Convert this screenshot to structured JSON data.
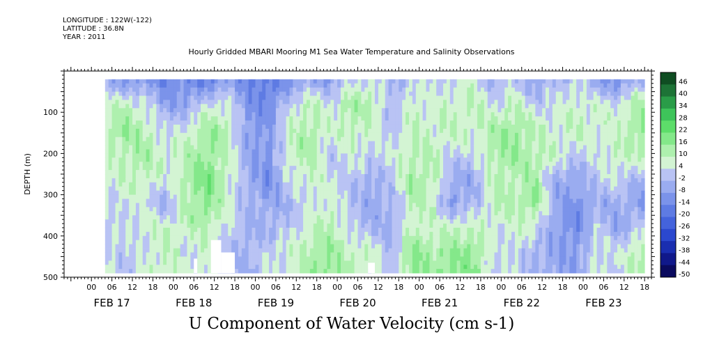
{
  "header": {
    "longitude": "LONGITUDE : 122W(-122)",
    "latitude": "LATITUDE : 36.8N",
    "year": "YEAR : 2011"
  },
  "title": "Hourly Gridded MBARI Mooring M1 Sea Water Temperature and Salinity Observations",
  "bottom_title": "U Component of Water Velocity (cm s-1)",
  "chart_data": {
    "type": "heatmap",
    "title": "Hourly Gridded MBARI Mooring M1 Sea Water Temperature and Salinity Observations",
    "xlabel": "",
    "ylabel": "DEPTH (m)",
    "variable": "U Component of Water Velocity (cm s-1)",
    "y_reversed": true,
    "ylim": [
      0,
      500
    ],
    "y_ticks": [
      100,
      200,
      300,
      400,
      500
    ],
    "xlim_hours": [
      -8,
      164
    ],
    "x_hour_ticks": [
      "00",
      "06",
      "12",
      "18",
      "00",
      "06",
      "12",
      "18",
      "00",
      "06",
      "12",
      "18",
      "00",
      "06",
      "12",
      "18",
      "00",
      "06",
      "12",
      "18",
      "00",
      "06",
      "12",
      "18",
      "00",
      "06",
      "12",
      "18"
    ],
    "x_day_labels": [
      "FEB 17",
      "FEB 18",
      "FEB 19",
      "FEB 20",
      "FEB 21",
      "FEB 22",
      "FEB 23"
    ],
    "data_extent": {
      "hour_start": 4,
      "hour_end": 162,
      "depth_top": 20,
      "depth_bottom": 490
    },
    "colorbar": {
      "levels": [
        -50,
        -44,
        -38,
        -32,
        -26,
        -20,
        -14,
        -8,
        -2,
        4,
        10,
        16,
        22,
        28,
        34,
        40,
        46
      ],
      "labels": [
        "46",
        "40",
        "34",
        "28",
        "22",
        "16",
        "10",
        "4",
        "-2",
        "-8",
        "-14",
        "-20",
        "-26",
        "-32",
        "-38",
        "-44",
        "-50"
      ],
      "colors": [
        "#0a0a5e",
        "#10188a",
        "#1a2eb0",
        "#2b48cf",
        "#4463dc",
        "#5e7be3",
        "#7b93ea",
        "#9aacf0",
        "#b9c3f4",
        "#d3f4d3",
        "#aef0ae",
        "#84e88a",
        "#5ddd6a",
        "#3ec45a",
        "#2a9c48",
        "#1d7336",
        "#0f4d22"
      ]
    },
    "columns_u_by_depth_band": {
      "depth_bands_m": [
        20,
        80,
        140,
        200,
        260,
        320,
        380,
        440,
        490
      ],
      "hours": [
        4,
        10,
        16,
        22,
        28,
        34,
        40,
        46,
        52,
        58,
        64,
        70,
        76,
        82,
        88,
        94,
        100,
        106,
        112,
        118,
        124,
        130,
        136,
        142,
        148,
        154,
        160
      ],
      "values": [
        [
          -6,
          8,
          12,
          6,
          4,
          2,
          0,
          6
        ],
        [
          -10,
          10,
          16,
          12,
          8,
          6,
          4,
          0
        ],
        [
          -8,
          4,
          10,
          14,
          10,
          4,
          8,
          6
        ],
        [
          -14,
          -8,
          2,
          6,
          4,
          -4,
          8,
          10
        ],
        [
          -12,
          -6,
          6,
          12,
          14,
          12,
          10,
          4
        ],
        [
          -16,
          4,
          14,
          16,
          20,
          18,
          12,
          8
        ],
        [
          -8,
          6,
          12,
          10,
          8,
          6,
          4,
          -2
        ],
        [
          -14,
          -10,
          -8,
          -6,
          -4,
          -2,
          -2,
          -4
        ],
        [
          -18,
          -12,
          -8,
          -10,
          -12,
          -6,
          -4,
          4
        ],
        [
          -10,
          2,
          8,
          10,
          4,
          -2,
          2,
          6
        ],
        [
          -6,
          10,
          14,
          12,
          10,
          4,
          8,
          14
        ],
        [
          -8,
          4,
          6,
          2,
          4,
          8,
          12,
          16
        ],
        [
          2,
          14,
          10,
          6,
          2,
          0,
          2,
          10
        ],
        [
          6,
          12,
          8,
          4,
          -4,
          -6,
          -2,
          8
        ],
        [
          -4,
          -2,
          2,
          4,
          2,
          -2,
          -4,
          -2
        ],
        [
          4,
          8,
          10,
          12,
          14,
          12,
          10,
          18
        ],
        [
          2,
          6,
          8,
          10,
          12,
          8,
          6,
          14
        ],
        [
          4,
          8,
          10,
          4,
          -6,
          -8,
          10,
          16
        ],
        [
          6,
          10,
          8,
          2,
          -4,
          -2,
          8,
          18
        ],
        [
          -2,
          4,
          12,
          14,
          12,
          10,
          6,
          2
        ],
        [
          0,
          10,
          16,
          14,
          10,
          12,
          8,
          4
        ],
        [
          -6,
          2,
          10,
          12,
          14,
          16,
          6,
          -4
        ],
        [
          -2,
          4,
          6,
          8,
          -4,
          -6,
          -8,
          -6
        ],
        [
          4,
          8,
          10,
          2,
          -6,
          -10,
          -12,
          -8
        ],
        [
          -8,
          6,
          8,
          4,
          2,
          -4,
          2,
          6
        ],
        [
          -12,
          4,
          6,
          10,
          6,
          -4,
          -6,
          2
        ],
        [
          -4,
          14,
          16,
          10,
          -2,
          -8,
          2,
          12
        ]
      ]
    },
    "missing_regions": [
      {
        "hour_start": 35,
        "hour_end": 38,
        "depth_top": 410,
        "depth_bottom": 490
      },
      {
        "hour_start": 38,
        "hour_end": 42,
        "depth_top": 440,
        "depth_bottom": 490
      },
      {
        "hour_start": 30,
        "hour_end": 31,
        "depth_top": 455,
        "depth_bottom": 490
      },
      {
        "hour_start": 81,
        "hour_end": 83,
        "depth_top": 465,
        "depth_bottom": 490
      }
    ],
    "grid": false,
    "legend": "colorbar right"
  }
}
